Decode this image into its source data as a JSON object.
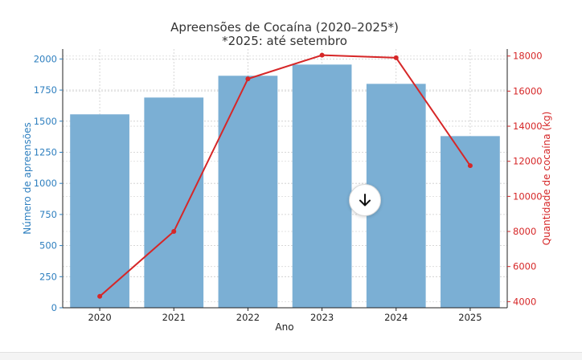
{
  "chart_data": {
    "type": "bar",
    "title": "Apreensões de Cocaína (2020–2025*)",
    "subtitle": "*2025: até setembro",
    "xlabel": "Ano",
    "categories": [
      "2020",
      "2021",
      "2022",
      "2023",
      "2024",
      "2025"
    ],
    "series": [
      {
        "name": "Número de apreensões",
        "type": "bar",
        "axis": "left",
        "color": "#7bafd4",
        "values": [
          1555,
          1690,
          1865,
          1955,
          1800,
          1380
        ]
      },
      {
        "name": "Quantidade de cocaína (kg)",
        "type": "line",
        "axis": "right",
        "color": "#d62728",
        "values": [
          4300,
          8000,
          16700,
          18050,
          17900,
          11750
        ]
      }
    ],
    "y_left": {
      "label": "Número de apreensões",
      "color": "#2e7fbf",
      "lim": [
        0,
        2080
      ],
      "ticks": [
        0,
        250,
        500,
        750,
        1000,
        1250,
        1500,
        1750,
        2000
      ]
    },
    "y_right": {
      "label": "Quantidade de cocaína (kg)",
      "color": "#d62728",
      "lim": [
        3650,
        18400
      ],
      "ticks": [
        4000,
        6000,
        8000,
        10000,
        12000,
        14000,
        16000,
        18000
      ]
    },
    "grid": true
  },
  "ui": {
    "scroll_down_icon": "arrow-down-icon"
  }
}
